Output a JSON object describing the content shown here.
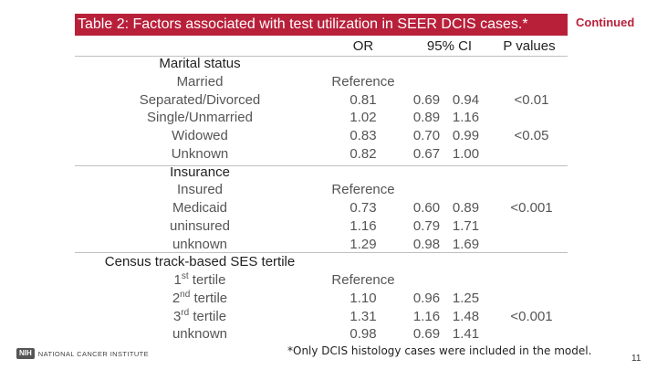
{
  "title": "Table 2: Factors associated with test utilization in SEER DCIS cases.*",
  "continued_label": "Continued",
  "headers": {
    "or": "OR",
    "ci": "95% CI",
    "p": "P values"
  },
  "rows": [
    {
      "label": "Marital status",
      "section": true,
      "or": "",
      "lo": "",
      "hi": "",
      "p": ""
    },
    {
      "label": "Married",
      "or": "Reference",
      "lo": "",
      "hi": "",
      "p": ""
    },
    {
      "label": "Separated/Divorced",
      "or": "0.81",
      "lo": "0.69",
      "hi": "0.94",
      "p": "<0.01"
    },
    {
      "label": "Single/Unmarried",
      "or": "1.02",
      "lo": "0.89",
      "hi": "1.16",
      "p": ""
    },
    {
      "label": "Widowed",
      "or": "0.83",
      "lo": "0.70",
      "hi": "0.99",
      "p": "<0.05"
    },
    {
      "label": "Unknown",
      "or": "0.82",
      "lo": "0.67",
      "hi": "1.00",
      "p": ""
    },
    {
      "label": "Insurance",
      "section": true,
      "or": "",
      "lo": "",
      "hi": "",
      "p": ""
    },
    {
      "label": "Insured",
      "or": "Reference",
      "lo": "",
      "hi": "",
      "p": ""
    },
    {
      "label": "Medicaid",
      "or": "0.73",
      "lo": "0.60",
      "hi": "0.89",
      "p": "<0.001"
    },
    {
      "label": "uninsured",
      "or": "1.16",
      "lo": "0.79",
      "hi": "1.71",
      "p": ""
    },
    {
      "label": "unknown",
      "or": "1.29",
      "lo": "0.98",
      "hi": "1.69",
      "p": ""
    },
    {
      "label": "Census track-based SES tertile",
      "section": true,
      "or": "",
      "lo": "",
      "hi": "",
      "p": ""
    },
    {
      "label": "1st tertile",
      "label_num": "1",
      "label_sup": "st",
      "label_rest": " tertile",
      "or": "Reference",
      "lo": "",
      "hi": "",
      "p": ""
    },
    {
      "label": "2nd tertile",
      "label_num": "2",
      "label_sup": "nd",
      "label_rest": " tertile",
      "or": "1.10",
      "lo": "0.96",
      "hi": "1.25",
      "p": ""
    },
    {
      "label": "3rd tertile",
      "label_num": "3",
      "label_sup": "rd",
      "label_rest": " tertile",
      "or": "1.31",
      "lo": "1.16",
      "hi": "1.48",
      "p": "<0.001"
    },
    {
      "label": "unknown",
      "or": "0.98",
      "lo": "0.69",
      "hi": "1.41",
      "p": ""
    }
  ],
  "footnote": "*Only DCIS histology cases were included in the model.",
  "page_number": "11",
  "logo": {
    "badge": "NIH",
    "name": "NATIONAL CANCER INSTITUTE"
  },
  "colors": {
    "title_bg": "#b8203a",
    "continued": "#b8203a"
  }
}
